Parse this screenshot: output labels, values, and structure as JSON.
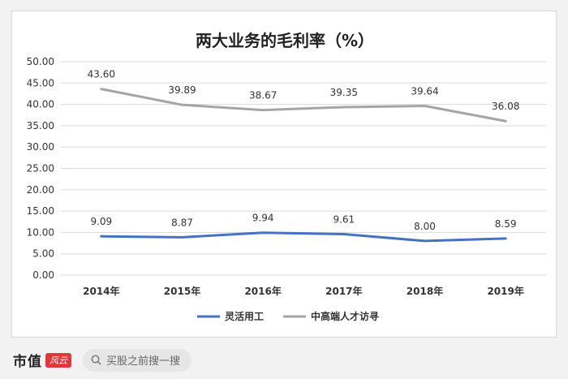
{
  "chart_data": {
    "type": "line",
    "title": "两大业务的毛利率（%）",
    "categories": [
      "2014年",
      "2015年",
      "2016年",
      "2017年",
      "2018年",
      "2019年"
    ],
    "ylim": [
      0,
      50
    ],
    "yticks": [
      "0.00",
      "5.00",
      "10.00",
      "15.00",
      "20.00",
      "25.00",
      "30.00",
      "35.00",
      "40.00",
      "45.00",
      "50.00"
    ],
    "grid": true,
    "legend_position": "bottom",
    "series": [
      {
        "name": "灵活用工",
        "color": "#4472c4",
        "values": [
          9.09,
          8.87,
          9.94,
          9.61,
          8.0,
          8.59
        ],
        "labels": [
          "9.09",
          "8.87",
          "9.94",
          "9.61",
          "8.00",
          "8.59"
        ]
      },
      {
        "name": "中高端人才访寻",
        "color": "#a5a5a5",
        "values": [
          43.6,
          39.89,
          38.67,
          39.35,
          39.64,
          36.08
        ],
        "labels": [
          "43.60",
          "39.89",
          "38.67",
          "39.35",
          "39.64",
          "36.08"
        ]
      }
    ]
  },
  "footer": {
    "brand": "市值",
    "logo_text": "风云",
    "search_placeholder": "买股之前搜一搜"
  }
}
